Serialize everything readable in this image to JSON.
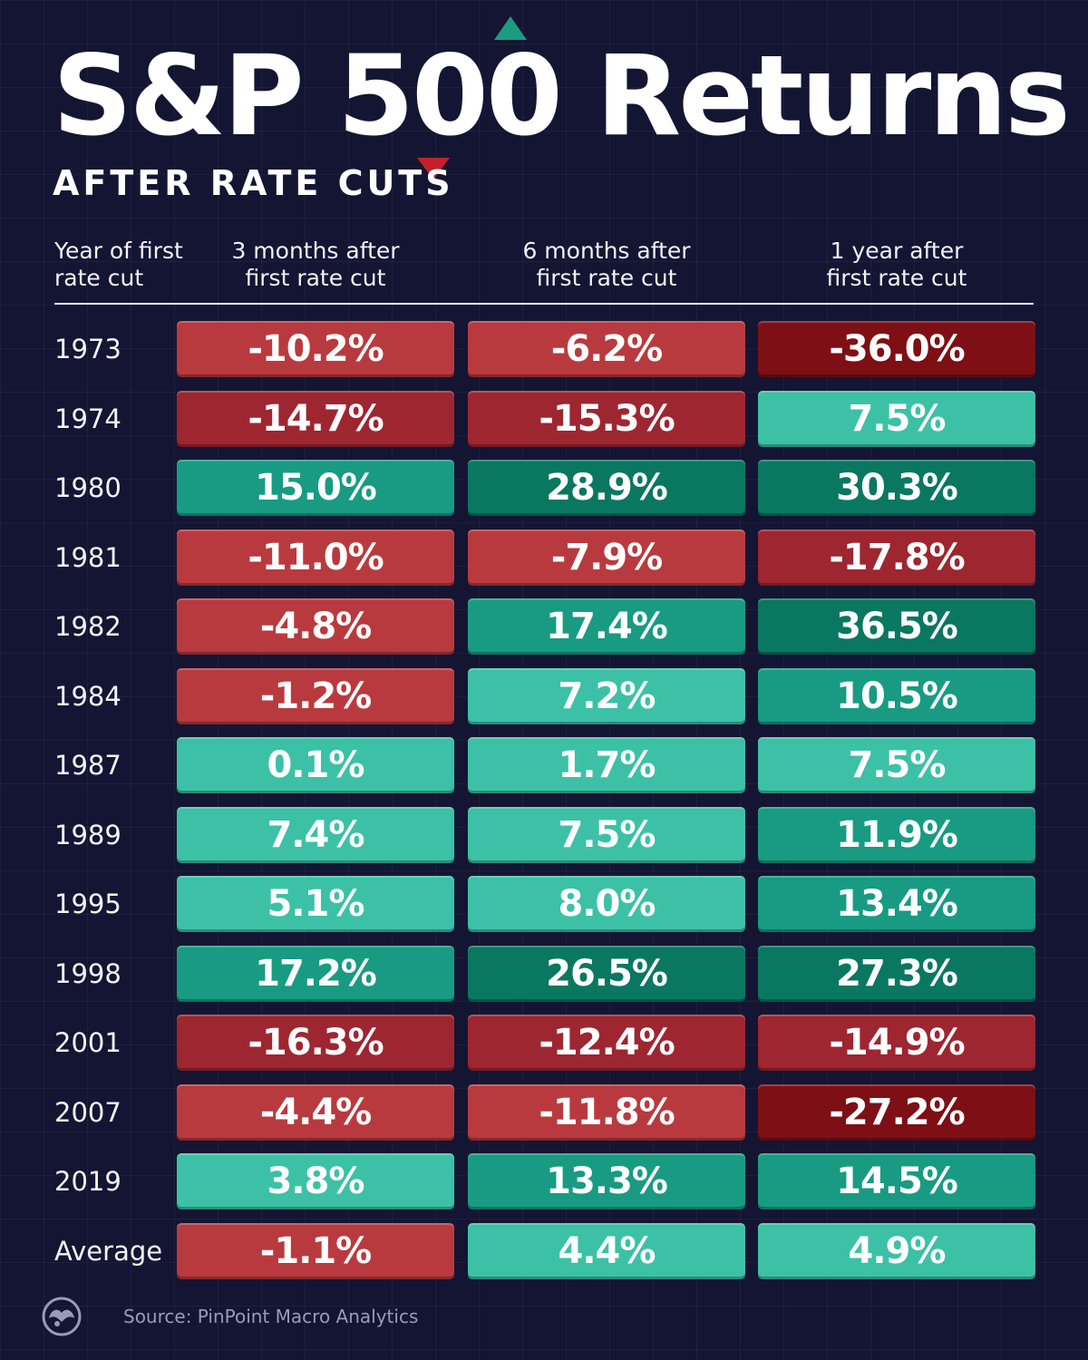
{
  "header": {
    "title": "S&P 500 Returns",
    "subtitle": "AFTER RATE CUTS"
  },
  "columns": {
    "year": "Year of first\nrate cut",
    "c3m": "3 months after\nfirst rate cut",
    "c6m": "6 months after\nfirst rate cut",
    "c1y": "1 year after\nfirst rate cut"
  },
  "footer": {
    "source": "Source: PinPoint Macro Analytics",
    "logo_icon": "visual-capitalist-logo-icon"
  },
  "colors": {
    "neg_light": "#b93a3e",
    "neg_mid": "#9e2630",
    "neg_dark": "#7e0f14",
    "pos_light": "#3cc1a6",
    "pos_mid": "#189b82",
    "pos_dark": "#0a7761"
  },
  "chart_data": {
    "type": "table",
    "title": "S&P 500 Returns",
    "subtitle": "AFTER RATE CUTS",
    "columns": [
      "Year of first rate cut",
      "3 months after first rate cut",
      "6 months after first rate cut",
      "1 year after first rate cut"
    ],
    "rows": [
      {
        "label": "1973",
        "values": [
          -10.2,
          -6.2,
          -36.0
        ],
        "display": [
          "-10.2%",
          "-6.2%",
          "-36.0%"
        ]
      },
      {
        "label": "1974",
        "values": [
          -14.7,
          -15.3,
          7.5
        ],
        "display": [
          "-14.7%",
          "-15.3%",
          "7.5%"
        ]
      },
      {
        "label": "1980",
        "values": [
          15.0,
          28.9,
          30.3
        ],
        "display": [
          "15.0%",
          "28.9%",
          "30.3%"
        ]
      },
      {
        "label": "1981",
        "values": [
          -11.0,
          -7.9,
          -17.8
        ],
        "display": [
          "-11.0%",
          "-7.9%",
          "-17.8%"
        ]
      },
      {
        "label": "1982",
        "values": [
          -4.8,
          17.4,
          36.5
        ],
        "display": [
          "-4.8%",
          "17.4%",
          "36.5%"
        ]
      },
      {
        "label": "1984",
        "values": [
          -1.2,
          7.2,
          10.5
        ],
        "display": [
          "-1.2%",
          "7.2%",
          "10.5%"
        ]
      },
      {
        "label": "1987",
        "values": [
          0.1,
          1.7,
          7.5
        ],
        "display": [
          "0.1%",
          "1.7%",
          "7.5%"
        ]
      },
      {
        "label": "1989",
        "values": [
          7.4,
          7.5,
          11.9
        ],
        "display": [
          "7.4%",
          "7.5%",
          "11.9%"
        ]
      },
      {
        "label": "1995",
        "values": [
          5.1,
          8.0,
          13.4
        ],
        "display": [
          "5.1%",
          "8.0%",
          "13.4%"
        ]
      },
      {
        "label": "1998",
        "values": [
          17.2,
          26.5,
          27.3
        ],
        "display": [
          "17.2%",
          "26.5%",
          "27.3%"
        ]
      },
      {
        "label": "2001",
        "values": [
          -16.3,
          -12.4,
          -14.9
        ],
        "display": [
          "-16.3%",
          "-12.4%",
          "-14.9%"
        ]
      },
      {
        "label": "2007",
        "values": [
          -4.4,
          -11.8,
          -27.2
        ],
        "display": [
          "-4.4%",
          "-11.8%",
          "-27.2%"
        ]
      },
      {
        "label": "2019",
        "values": [
          3.8,
          13.3,
          14.5
        ],
        "display": [
          "3.8%",
          "13.3%",
          "14.5%"
        ]
      },
      {
        "label": "Average",
        "values": [
          -1.1,
          4.4,
          4.9
        ],
        "display": [
          "-1.1%",
          "4.4%",
          "4.9%"
        ]
      }
    ]
  }
}
